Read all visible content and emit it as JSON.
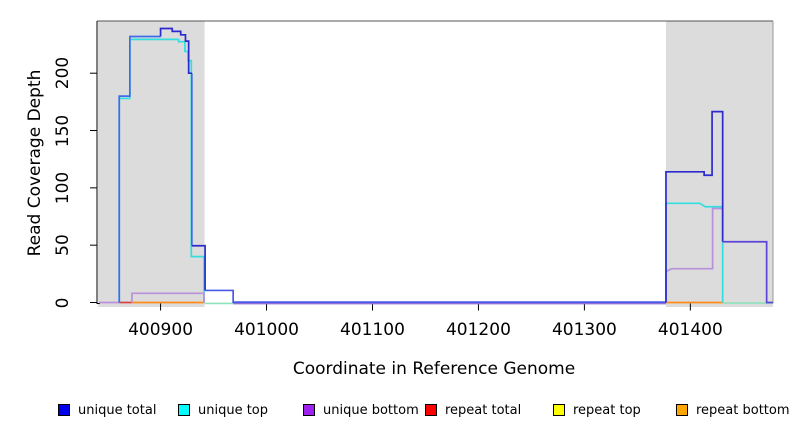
{
  "chart_data": {
    "type": "line",
    "title": "",
    "xlabel": "Coordinate in Reference Genome",
    "ylabel": "Read Coverage Depth",
    "xlim": [
      400840,
      401478
    ],
    "ylim": [
      0,
      245
    ],
    "grid": false,
    "legend_position": "bottom",
    "x_ticks": [
      400900,
      401000,
      401100,
      401200,
      401300,
      401400
    ],
    "y_ticks": [
      0,
      50,
      100,
      150,
      200
    ],
    "shaded_regions": [
      {
        "name": "repeat-region-left",
        "x0": 400841,
        "x1": 400941.5,
        "color": "#dcdcdc"
      },
      {
        "name": "repeat-region-right",
        "x0": 401377,
        "x1": 401478,
        "color": "#dcdcdc"
      }
    ],
    "legend": [
      {
        "label": "unique total",
        "color": "#0000ee"
      },
      {
        "label": "unique top",
        "color": "#00ffff"
      },
      {
        "label": "unique bottom",
        "color": "#a020f0"
      },
      {
        "label": "repeat total",
        "color": "#ff0000"
      },
      {
        "label": "repeat top",
        "color": "#ffff00"
      },
      {
        "label": "repeat bottom",
        "color": "#ffa500"
      }
    ],
    "series": [
      {
        "name": "repeat-total-zero",
        "color": "#d84040",
        "points": [
          [
            400861,
            0
          ],
          [
            400873,
            0
          ]
        ]
      },
      {
        "name": "repeat-bottom-zero-left",
        "color": "#ff8c1a",
        "points": [
          [
            400873,
            0
          ],
          [
            400941.5,
            0
          ]
        ]
      },
      {
        "name": "repeat-bottom-zero-right",
        "color": "#ff8c1a",
        "points": [
          [
            401377,
            0
          ],
          [
            401431,
            0
          ]
        ]
      },
      {
        "name": "unique-top-zero-left",
        "color": "#8fe2bc",
        "points": [
          [
            400942,
            -0.8
          ],
          [
            400968.5,
            -0.8
          ]
        ]
      },
      {
        "name": "unique-top-zero-right",
        "color": "#8fe2bc",
        "points": [
          [
            401431,
            -0.5
          ],
          [
            401478,
            -0.5
          ]
        ]
      },
      {
        "name": "unique-top-left-block",
        "color": "#35dede",
        "points": [
          [
            400861,
            0
          ],
          [
            400861,
            178
          ],
          [
            400871,
            178
          ],
          [
            400871,
            229.5
          ],
          [
            400917,
            229.5
          ],
          [
            400917,
            227.5
          ],
          [
            400923,
            227.5
          ],
          [
            400923,
            219
          ],
          [
            400926,
            219
          ],
          [
            400926,
            211
          ],
          [
            400929,
            211
          ],
          [
            400929,
            40
          ],
          [
            400941,
            40
          ],
          [
            400941,
            -0.5
          ]
        ]
      },
      {
        "name": "unique-top-right-block",
        "color": "#35dede",
        "points": [
          [
            401377,
            0
          ],
          [
            401377,
            86.5
          ],
          [
            401409,
            86.5
          ],
          [
            401414,
            83.5
          ],
          [
            401430.5,
            83.5
          ],
          [
            401430.5,
            0
          ]
        ]
      },
      {
        "name": "unique-bottom-zero-edge",
        "color": "#ba90dc",
        "points": [
          [
            400842,
            0
          ],
          [
            400861,
            0
          ]
        ]
      },
      {
        "name": "unique-bottom-left-shelf",
        "color": "#ba90dc",
        "points": [
          [
            400873,
            0
          ],
          [
            400873,
            8
          ],
          [
            400941,
            8
          ],
          [
            400941,
            0
          ]
        ]
      },
      {
        "name": "unique-bottom-zero-mid",
        "color": "#8f6fd8",
        "points": [
          [
            400968.5,
            -0.9
          ],
          [
            401377,
            -0.9
          ]
        ]
      },
      {
        "name": "unique-bottom-right-block",
        "color": "#ba90dc",
        "points": [
          [
            401377,
            0
          ],
          [
            401377,
            27
          ],
          [
            401382.5,
            29.5
          ],
          [
            401421,
            29.5
          ],
          [
            401421,
            82
          ],
          [
            401430,
            82
          ]
        ]
      },
      {
        "name": "unique-total-left-block",
        "color": "#3e6be8",
        "points": [
          [
            400861,
            0
          ],
          [
            400861,
            180
          ],
          [
            400871,
            180
          ],
          [
            400871,
            232
          ],
          [
            400900,
            232
          ]
        ]
      },
      {
        "name": "unique-total-big-drop",
        "color": "#3e6be8",
        "points": [
          [
            400929.5,
            200
          ],
          [
            400929.5,
            49.5
          ]
        ]
      },
      {
        "name": "unique-total-low-shelf",
        "color": "#4a5ae8",
        "points": [
          [
            400942,
            10.5
          ],
          [
            400968.5,
            10.5
          ],
          [
            400968.5,
            0.3
          ],
          [
            401377,
            0.3
          ]
        ]
      },
      {
        "name": "unique-total-peak-bump",
        "color": "#2a2acf",
        "points": [
          [
            400900,
            232
          ],
          [
            400900,
            239
          ],
          [
            400911,
            239
          ],
          [
            400911,
            236.5
          ],
          [
            400919,
            236.5
          ],
          [
            400919,
            233.5
          ],
          [
            400923.5,
            233.5
          ],
          [
            400923.5,
            228
          ],
          [
            400926.5,
            228
          ],
          [
            400926.5,
            200
          ],
          [
            400929.5,
            200
          ]
        ]
      },
      {
        "name": "unique-total-mid-shelf",
        "color": "#2a2acf",
        "points": [
          [
            400929.5,
            49.5
          ],
          [
            400942,
            49.5
          ],
          [
            400942,
            10.5
          ]
        ]
      },
      {
        "name": "unique-total-right-block",
        "color": "#2a2acf",
        "points": [
          [
            401377,
            0
          ],
          [
            401377,
            114
          ],
          [
            401413,
            114
          ],
          [
            401413,
            111
          ],
          [
            401420.5,
            111
          ],
          [
            401420.5,
            166.5
          ],
          [
            401430.5,
            166.5
          ],
          [
            401430.5,
            53
          ]
        ]
      },
      {
        "name": "total-bottom-overlap-shelf",
        "color": "#5b43d8",
        "points": [
          [
            401430.5,
            53
          ],
          [
            401472,
            53
          ],
          [
            401472,
            0
          ],
          [
            401478,
            0
          ]
        ]
      }
    ]
  }
}
